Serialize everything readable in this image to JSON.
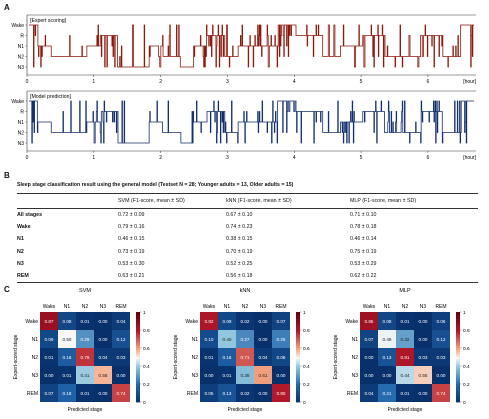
{
  "panels": {
    "a": "A",
    "b": "B",
    "c": "C"
  },
  "panel_a": {
    "expert_label": "[Expert scoring]",
    "model_label": "[Model prediction]",
    "x_ticks": [
      "0",
      "1",
      "2",
      "3",
      "4",
      "5",
      "6"
    ],
    "x_unit": "[hour]",
    "stage_labels": [
      "Wake",
      "R",
      "N1",
      "N2",
      "N3"
    ],
    "expert_color": "#8b1a0e",
    "model_color": "#14306e"
  },
  "panel_b": {
    "title": "Sleep stage classification result using the general model (Testset N = 28; Younger adults = 13, Older adults = 15)",
    "headers": [
      "",
      "SVM (F1-score, mean ± SD)",
      "kNN (F1-score, mean ± SD)",
      "MLP (F1-score, mean ± SD)"
    ],
    "rows": [
      {
        "stage": "All stages",
        "svm": "0.72 ± 0.09",
        "knn": "0.67 ± 0.10",
        "mlp": "0.71 ± 0.10"
      },
      {
        "stage": "Wake",
        "svm": "0.79 ± 0.16",
        "knn": "0.74 ± 0.23",
        "mlp": "0.78 ± 0.18"
      },
      {
        "stage": "N1",
        "svm": "0.46 ± 0.15",
        "knn": "0.38 ± 0.15",
        "mlp": "0.46 ± 0.14"
      },
      {
        "stage": "N2",
        "svm": "0.73 ± 0.19",
        "knn": "0.70 ± 0.19",
        "mlp": "0.75 ± 0.19"
      },
      {
        "stage": "N3",
        "svm": "0.53 ± 0.30",
        "knn": "0.52 ± 0.25",
        "mlp": "0.53 ± 0.29"
      },
      {
        "stage": "REM",
        "svm": "0.63 ± 0.21",
        "knn": "0.56 ± 0.18",
        "mlp": "0.62 ± 0.22"
      }
    ]
  },
  "chart_data": [
    {
      "type": "heatmap",
      "title": "SVM",
      "categories": [
        "Wake",
        "N1",
        "N2",
        "N3",
        "REM"
      ],
      "xlabel": "Predicted stage",
      "ylabel": "Expert-scored stage",
      "colorbar_ticks": [
        "0",
        "0.2",
        "0.4",
        "0.6",
        "0.8",
        "1"
      ],
      "values": [
        [
          0.87,
          0.08,
          0.01,
          0.0,
          0.04
        ],
        [
          0.09,
          0.5,
          0.29,
          0.0,
          0.12
        ],
        [
          0.01,
          0.16,
          0.76,
          0.04,
          0.03
        ],
        [
          0.0,
          0.01,
          0.41,
          0.58,
          0.0
        ],
        [
          0.07,
          0.18,
          0.01,
          0.0,
          0.74
        ]
      ]
    },
    {
      "type": "heatmap",
      "title": "kNN",
      "categories": [
        "Wake",
        "N1",
        "N2",
        "N3",
        "REM"
      ],
      "xlabel": "Predicted stage",
      "ylabel": "Expert-scored stage",
      "colorbar_ticks": [
        "0",
        "0.2",
        "0.4",
        "0.6",
        "0.8",
        "1"
      ],
      "values": [
        [
          0.82,
          0.09,
          0.02,
          0.0,
          0.07
        ],
        [
          0.1,
          0.4,
          0.27,
          0.0,
          0.25
        ],
        [
          0.01,
          0.16,
          0.71,
          0.04,
          0.08
        ],
        [
          0.0,
          0.01,
          0.38,
          0.61,
          0.0
        ],
        [
          0.05,
          0.13,
          0.02,
          0.0,
          0.8
        ]
      ]
    },
    {
      "type": "heatmap",
      "title": "MLP",
      "categories": [
        "Wake",
        "N1",
        "N2",
        "N3",
        "REM"
      ],
      "xlabel": "Predicted stage",
      "ylabel": "Expert-scored stage",
      "colorbar_ticks": [
        "0",
        "0.2",
        "0.4",
        "0.6",
        "0.8",
        "1"
      ],
      "values": [
        [
          0.85,
          0.08,
          0.01,
          0.0,
          0.06
        ],
        [
          0.07,
          0.49,
          0.32,
          0.0,
          0.12
        ],
        [
          0.0,
          0.13,
          0.81,
          0.03,
          0.03
        ],
        [
          0.0,
          0.0,
          0.44,
          0.55,
          0.0
        ],
        [
          0.04,
          0.21,
          0.01,
          0.0,
          0.74
        ]
      ]
    }
  ]
}
